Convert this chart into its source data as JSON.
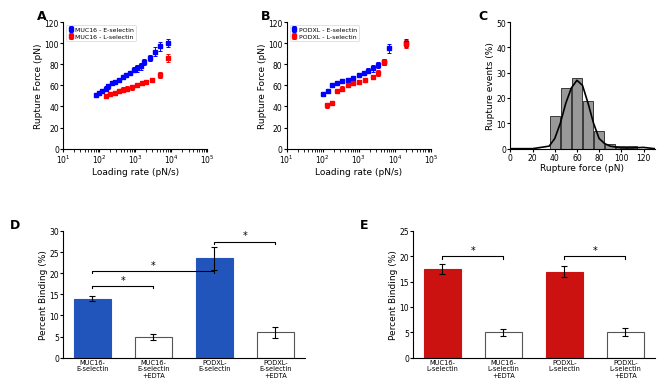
{
  "panel_A": {
    "title": "A",
    "xlabel": "Loading rate (pN/s)",
    "ylabel": "Rupture Force (pN)",
    "ylim": [
      0,
      120
    ],
    "xlim_log": [
      10,
      100000
    ],
    "blue_x": [
      80,
      100,
      120,
      150,
      180,
      220,
      280,
      350,
      450,
      550,
      700,
      900,
      1100,
      1400,
      1800,
      2500,
      3500,
      5000,
      8000
    ],
    "blue_y": [
      51,
      53,
      55,
      57,
      59,
      62,
      63,
      65,
      68,
      70,
      72,
      75,
      76,
      78,
      82,
      86,
      92,
      97,
      100
    ],
    "blue_yerr": [
      2,
      2,
      2,
      2,
      2,
      2,
      2,
      2,
      2,
      2,
      2,
      2,
      3,
      3,
      3,
      3,
      4,
      4,
      4
    ],
    "red_x": [
      150,
      200,
      280,
      350,
      450,
      600,
      800,
      1100,
      1500,
      2000,
      3000,
      5000,
      8000
    ],
    "red_y": [
      50,
      52,
      53,
      55,
      56,
      57,
      58,
      60,
      62,
      63,
      65,
      70,
      86
    ],
    "red_yerr": [
      2,
      2,
      2,
      2,
      2,
      2,
      2,
      2,
      2,
      2,
      2,
      3,
      4
    ],
    "legend": [
      "MUC16 - E-selectin",
      "MUC16 - L-selectin"
    ]
  },
  "panel_B": {
    "title": "B",
    "xlabel": "Loading rate (pN/s)",
    "ylabel": "Rupture Force (pN)",
    "ylim": [
      0,
      120
    ],
    "xlim_log": [
      10,
      100000
    ],
    "blue_x": [
      100,
      140,
      180,
      250,
      350,
      500,
      700,
      1000,
      1400,
      1800,
      2500,
      3500,
      5000,
      7000,
      20000
    ],
    "blue_y": [
      52,
      55,
      60,
      62,
      64,
      65,
      67,
      70,
      72,
      74,
      76,
      79,
      82,
      95,
      100
    ],
    "blue_yerr": [
      2,
      2,
      2,
      2,
      2,
      2,
      2,
      2,
      2,
      2,
      3,
      3,
      3,
      4,
      4
    ],
    "red_x": [
      130,
      180,
      250,
      350,
      500,
      700,
      1000,
      1500,
      2500,
      3500,
      5000,
      20000
    ],
    "red_y": [
      41,
      43,
      55,
      57,
      60,
      62,
      63,
      65,
      68,
      72,
      82,
      99
    ],
    "red_yerr": [
      2,
      2,
      2,
      2,
      2,
      2,
      2,
      2,
      2,
      3,
      3,
      4
    ],
    "legend": [
      "PODXL - E-selectin",
      "PODXL - L-selectin"
    ]
  },
  "panel_C": {
    "title": "C",
    "xlabel": "Rupture force (pN)",
    "ylabel": "Rupture events (%)",
    "ylim": [
      0,
      50
    ],
    "xlim": [
      0,
      130
    ],
    "xticks": [
      0,
      20,
      40,
      60,
      80,
      100,
      120
    ],
    "yticks": [
      0,
      10,
      20,
      30,
      40,
      50
    ],
    "bin_centers": [
      40,
      50,
      60,
      70,
      80,
      90,
      100,
      110
    ],
    "bin_heights": [
      13,
      24,
      28,
      19,
      7,
      2,
      1,
      1
    ],
    "bin_width": 9,
    "bar_color": "#999999",
    "curve_x": [
      0,
      20,
      35,
      40,
      45,
      50,
      55,
      60,
      65,
      70,
      75,
      80,
      85,
      90,
      100,
      110,
      120,
      130
    ],
    "curve_y": [
      0,
      0,
      1,
      4,
      10,
      18,
      24,
      27,
      25,
      18,
      10,
      4,
      2,
      1,
      0.3,
      0.3,
      0.5,
      0
    ]
  },
  "panel_D": {
    "title": "D",
    "xlabel": "",
    "ylabel": "Percent Binding (%)",
    "ylim": [
      0,
      30
    ],
    "yticks": [
      0,
      5,
      10,
      15,
      20,
      25,
      30
    ],
    "categories": [
      "MUC16-\nE-selectin",
      "MUC16-\nE-selectin\n+EDTA",
      "PODXL-\nE-selectin",
      "PODXL-\nE-selectin\n+EDTA"
    ],
    "values": [
      14,
      4.8,
      23.5,
      6
    ],
    "errors": [
      0.6,
      0.7,
      2.8,
      1.3
    ],
    "colors": [
      "#2255bb",
      "#ffffff",
      "#2255bb",
      "#ffffff"
    ],
    "edge_colors": [
      "#2255bb",
      "#555555",
      "#2255bb",
      "#555555"
    ],
    "sig_lines": [
      {
        "x1": 0,
        "x2": 1,
        "y": 17,
        "label": "*"
      },
      {
        "x1": 0,
        "x2": 2,
        "y": 20.5,
        "label": "*"
      },
      {
        "x1": 2,
        "x2": 3,
        "y": 27.5,
        "label": "*"
      }
    ]
  },
  "panel_E": {
    "title": "E",
    "xlabel": "",
    "ylabel": "Percent Binding (%)",
    "ylim": [
      0,
      25
    ],
    "yticks": [
      0,
      5,
      10,
      15,
      20,
      25
    ],
    "categories": [
      "MUC16-\nL-selectin",
      "MUC16-\nL-selectin\n+EDTA",
      "PODXL-\nL-selectin",
      "PODXL-\nL-selectin\n+EDTA"
    ],
    "values": [
      17.5,
      5,
      17,
      5
    ],
    "errors": [
      1.0,
      0.7,
      1.0,
      0.8
    ],
    "colors": [
      "#cc1111",
      "#ffffff",
      "#cc1111",
      "#ffffff"
    ],
    "edge_colors": [
      "#cc1111",
      "#555555",
      "#cc1111",
      "#555555"
    ],
    "sig_lines": [
      {
        "x1": 0,
        "x2": 1,
        "y": 20,
        "label": "*"
      },
      {
        "x1": 2,
        "x2": 3,
        "y": 20,
        "label": "*"
      }
    ]
  }
}
